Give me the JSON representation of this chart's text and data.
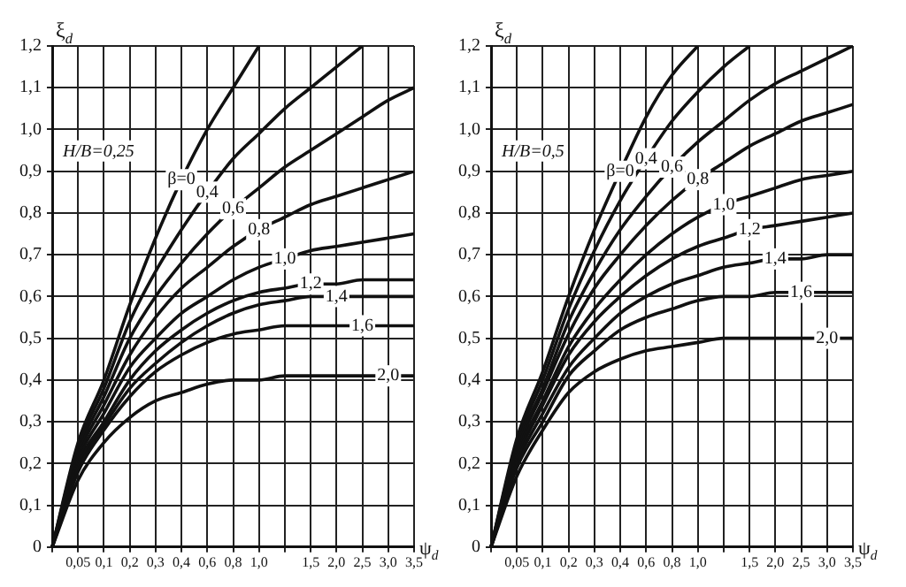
{
  "chart_data": [
    {
      "type": "line",
      "ylabel": "ξ$_{d}$",
      "xlabel": "ψ$_{d}$",
      "annotations": [
        "H/B=0,25"
      ],
      "grid": true,
      "marker": "none",
      "line_style": "solid",
      "categories": [
        null,
        "0,05",
        "0,1",
        "0,2",
        "0,3",
        "0,4",
        "0,6",
        "0,8",
        "1,0",
        null,
        "1,5",
        "2,0",
        "2,5",
        "3,0",
        "3,5"
      ],
      "ylim": [
        0,
        1.2
      ],
      "yticks": [
        0,
        {
          "value": 0.1,
          "label": "0,1"
        },
        {
          "value": 0.2,
          "label": "0,2"
        },
        {
          "value": 0.3,
          "label": "0,3"
        },
        {
          "value": 0.4,
          "label": "0,4"
        },
        {
          "value": 0.5,
          "label": "0,5"
        },
        {
          "value": 0.6,
          "label": "0,6"
        },
        {
          "value": 0.7,
          "label": "0,7"
        },
        {
          "value": 0.8,
          "label": "0,8"
        },
        {
          "value": 0.9,
          "label": "0,9"
        },
        {
          "value": 1.0,
          "label": "1,0"
        },
        {
          "value": 1.1,
          "label": "1,1"
        },
        {
          "value": 1.2,
          "label": "1,2"
        }
      ],
      "series": [
        {
          "name": "β=0",
          "color": "#111111",
          "values": [
            0,
            0.25,
            0.4,
            0.58,
            0.74,
            0.88,
            1.0,
            1.1,
            1.2,
            null,
            null,
            null,
            null,
            null,
            null
          ]
        },
        {
          "name": "0,4",
          "color": "#111111",
          "values": [
            0,
            0.24,
            0.38,
            0.54,
            0.66,
            0.76,
            0.85,
            0.93,
            0.99,
            1.05,
            1.1,
            1.15,
            1.2,
            null,
            null
          ]
        },
        {
          "name": "0,6",
          "color": "#111111",
          "values": [
            0,
            0.23,
            0.36,
            0.5,
            0.6,
            0.68,
            0.75,
            0.81,
            0.86,
            0.91,
            0.95,
            0.99,
            1.03,
            1.07,
            1.1
          ]
        },
        {
          "name": "0,8",
          "color": "#111111",
          "values": [
            0,
            0.22,
            0.34,
            0.46,
            0.55,
            0.62,
            0.67,
            0.72,
            0.76,
            0.79,
            0.82,
            0.84,
            0.86,
            0.88,
            0.9
          ]
        },
        {
          "name": "1,0",
          "color": "#111111",
          "values": [
            0,
            0.21,
            0.32,
            0.43,
            0.5,
            0.56,
            0.6,
            0.64,
            0.67,
            0.69,
            0.71,
            0.72,
            0.73,
            0.74,
            0.75
          ]
        },
        {
          "name": "1,2",
          "color": "#111111",
          "values": [
            0,
            0.2,
            0.3,
            0.4,
            0.47,
            0.52,
            0.56,
            0.59,
            0.61,
            0.62,
            0.63,
            0.63,
            0.64,
            0.64,
            0.64
          ]
        },
        {
          "name": "1,4",
          "color": "#111111",
          "values": [
            0,
            0.19,
            0.29,
            0.38,
            0.44,
            0.49,
            0.53,
            0.56,
            0.58,
            0.59,
            0.6,
            0.6,
            0.6,
            0.6,
            0.6
          ]
        },
        {
          "name": "1,6",
          "color": "#111111",
          "values": [
            0,
            0.18,
            0.28,
            0.36,
            0.42,
            0.46,
            0.49,
            0.51,
            0.52,
            0.53,
            0.53,
            0.53,
            0.53,
            0.53,
            0.53
          ]
        },
        {
          "name": "2,0",
          "color": "#111111",
          "values": [
            0,
            0.16,
            0.25,
            0.31,
            0.35,
            0.37,
            0.39,
            0.4,
            0.4,
            0.41,
            0.41,
            0.41,
            0.41,
            0.41,
            0.41
          ]
        }
      ]
    },
    {
      "type": "line",
      "ylabel": "ξ$_{d}$",
      "xlabel": "ψ$_{d}$",
      "annotations": [
        "H/B=0,5"
      ],
      "grid": true,
      "marker": "none",
      "line_style": "solid",
      "categories": [
        null,
        "0,05",
        "0,1",
        "0,2",
        "0,3",
        "0,4",
        "0,6",
        "0,8",
        "1,0",
        null,
        "1,5",
        "2,0",
        "2,5",
        "3,0",
        "3,5"
      ],
      "ylim": [
        0,
        1.2
      ],
      "yticks": [
        0,
        {
          "value": 0.1,
          "label": "0,1"
        },
        {
          "value": 0.2,
          "label": "0,2"
        },
        {
          "value": 0.3,
          "label": "0,3"
        },
        {
          "value": 0.4,
          "label": "0,4"
        },
        {
          "value": 0.5,
          "label": "0,5"
        },
        {
          "value": 0.6,
          "label": "0,6"
        },
        {
          "value": 0.7,
          "label": "0,7"
        },
        {
          "value": 0.8,
          "label": "0,8"
        },
        {
          "value": 0.9,
          "label": "0,9"
        },
        {
          "value": 1.0,
          "label": "1,0"
        },
        {
          "value": 1.1,
          "label": "1,1"
        },
        {
          "value": 1.2,
          "label": "1,2"
        }
      ],
      "series": [
        {
          "name": "β=0",
          "color": "#111111",
          "values": [
            0,
            0.26,
            0.42,
            0.6,
            0.76,
            0.9,
            1.03,
            1.13,
            1.2,
            null,
            null,
            null,
            null,
            null,
            null
          ]
        },
        {
          "name": "0,4",
          "color": "#111111",
          "values": [
            0,
            0.25,
            0.4,
            0.57,
            0.71,
            0.83,
            0.93,
            1.02,
            1.09,
            1.15,
            1.2,
            null,
            null,
            null,
            null
          ]
        },
        {
          "name": "0,6",
          "color": "#111111",
          "values": [
            0,
            0.24,
            0.38,
            0.54,
            0.66,
            0.76,
            0.84,
            0.91,
            0.97,
            1.02,
            1.07,
            1.11,
            1.14,
            1.17,
            1.2
          ]
        },
        {
          "name": "0,8",
          "color": "#111111",
          "values": [
            0,
            0.23,
            0.37,
            0.51,
            0.62,
            0.7,
            0.77,
            0.83,
            0.88,
            0.92,
            0.96,
            0.99,
            1.02,
            1.04,
            1.06
          ]
        },
        {
          "name": "1,0",
          "color": "#111111",
          "values": [
            0,
            0.22,
            0.35,
            0.48,
            0.57,
            0.64,
            0.7,
            0.75,
            0.79,
            0.82,
            0.84,
            0.86,
            0.88,
            0.89,
            0.9
          ]
        },
        {
          "name": "1,2",
          "color": "#111111",
          "values": [
            0,
            0.21,
            0.34,
            0.46,
            0.54,
            0.6,
            0.65,
            0.69,
            0.72,
            0.74,
            0.76,
            0.77,
            0.78,
            0.79,
            0.8
          ]
        },
        {
          "name": "1,4",
          "color": "#111111",
          "values": [
            0,
            0.2,
            0.32,
            0.43,
            0.5,
            0.56,
            0.6,
            0.63,
            0.65,
            0.67,
            0.68,
            0.69,
            0.69,
            0.7,
            0.7
          ]
        },
        {
          "name": "1,6",
          "color": "#111111",
          "values": [
            0,
            0.19,
            0.3,
            0.41,
            0.47,
            0.52,
            0.55,
            0.57,
            0.59,
            0.6,
            0.6,
            0.61,
            0.61,
            0.61,
            0.61
          ]
        },
        {
          "name": "2,0",
          "color": "#111111",
          "values": [
            0,
            0.17,
            0.28,
            0.37,
            0.42,
            0.45,
            0.47,
            0.48,
            0.49,
            0.5,
            0.5,
            0.5,
            0.5,
            0.5,
            0.5
          ]
        }
      ]
    }
  ]
}
